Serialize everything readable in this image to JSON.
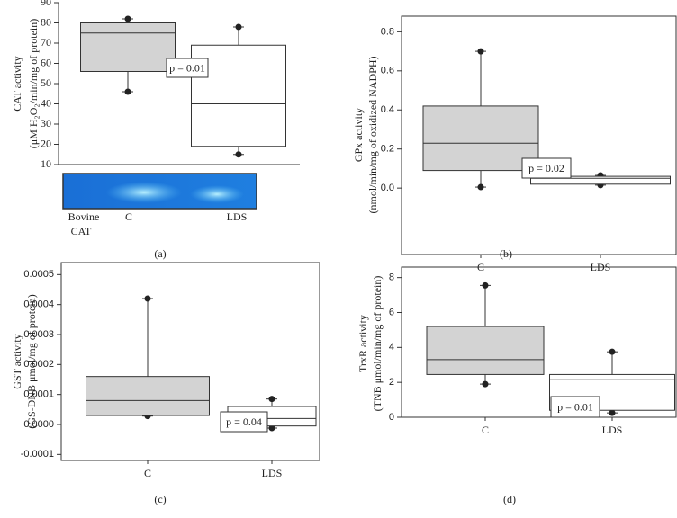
{
  "chart_data": [
    {
      "type": "box",
      "panel": "(a)",
      "ylabel": [
        "CAT activity",
        "(μM H₂O₂/min/mg of protein)"
      ],
      "annotation": "p = 0.01",
      "ylim": [
        10,
        90
      ],
      "yticks": [
        10,
        20,
        30,
        40,
        50,
        60,
        70,
        80,
        90
      ],
      "categories": [
        null,
        null
      ],
      "gel_labels": [
        "Bovine",
        "CAT",
        "C",
        "LDS"
      ],
      "boxes": [
        {
          "whislo": 46,
          "q1": 56,
          "med": 75,
          "q3": 80,
          "whishi": 82,
          "color": "#d3d3d3"
        },
        {
          "whislo": 15,
          "q1": 19,
          "med": 40,
          "q3": 69,
          "whishi": 78,
          "color": "#ffffff"
        }
      ]
    },
    {
      "type": "box",
      "panel": "(b)",
      "ylabel": [
        "GPx activity",
        "(nmol/min/mg of oxidized NADPH)"
      ],
      "annotation": "p = 0.02",
      "ylim": [
        -0.34,
        0.88
      ],
      "yticks": [
        {
          "value": 0,
          "label": "0.0"
        },
        0.2,
        0.4,
        0.6,
        0.8
      ],
      "categories": [
        "C",
        "LDS"
      ],
      "boxes": [
        {
          "whislo": 0.005,
          "q1": 0.09,
          "med": 0.23,
          "q3": 0.42,
          "whishi": 0.7,
          "color": "#d3d3d3"
        },
        {
          "whislo": 0.015,
          "q1": 0.02,
          "med": 0.05,
          "q3": 0.06,
          "whishi": 0.065,
          "color": "#ffffff"
        }
      ]
    },
    {
      "type": "box",
      "panel": "(c)",
      "ylabel": [
        "GST activity",
        "(GS-DNB μmol/mg of protein)"
      ],
      "annotation": "p = 0.04",
      "ylim": [
        -0.00012,
        0.00054
      ],
      "yticks": [
        -0.0001,
        {
          "value": 0,
          "label": "0.0000"
        },
        0.0001,
        0.0002,
        0.0003,
        0.0004,
        0.0005
      ],
      "categories": [
        "C",
        "LDS"
      ],
      "boxes": [
        {
          "whislo": 2.8e-05,
          "q1": 3e-05,
          "med": 8e-05,
          "q3": 0.00016,
          "whishi": 0.00042,
          "color": "#d3d3d3"
        },
        {
          "whislo": -1.2e-05,
          "q1": -5e-06,
          "med": 2e-05,
          "q3": 6e-05,
          "whishi": 8.5e-05,
          "color": "#ffffff"
        }
      ]
    },
    {
      "type": "box",
      "panel": "(d)",
      "ylabel": [
        "TrxR activity",
        "(TNB μmol/min/mg of protein)"
      ],
      "annotation": "p = 0.01",
      "ylim": [
        0,
        8.6
      ],
      "yticks": [
        0,
        2,
        4,
        6,
        8
      ],
      "categories": [
        "C",
        "LDS"
      ],
      "boxes": [
        {
          "whislo": 1.9,
          "q1": 2.45,
          "med": 3.3,
          "q3": 5.2,
          "whishi": 7.55,
          "color": "#d3d3d3"
        },
        {
          "whislo": 0.25,
          "q1": 0.4,
          "med": 2.15,
          "q3": 2.45,
          "whishi": 3.75,
          "color": "#ffffff"
        }
      ]
    }
  ]
}
